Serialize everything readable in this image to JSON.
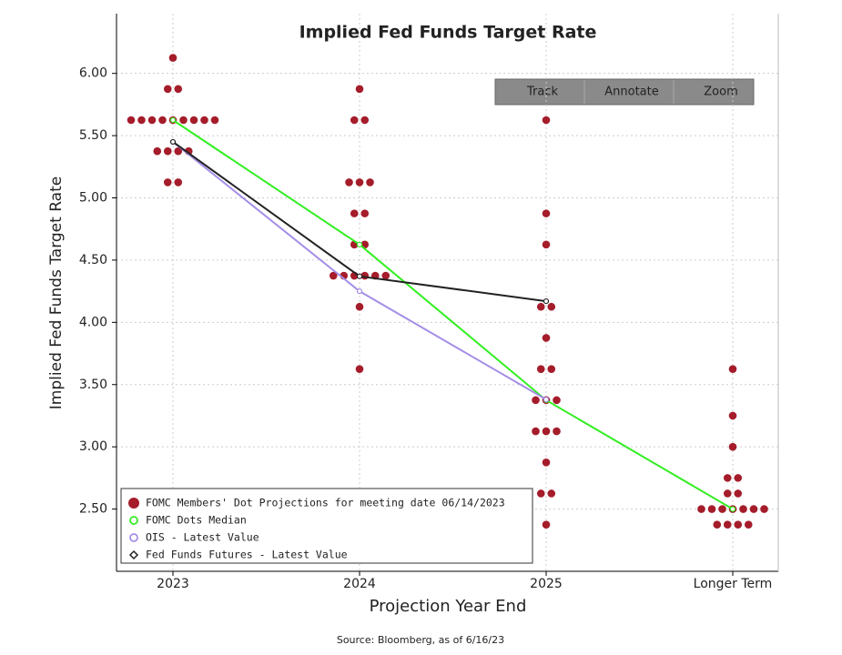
{
  "chart_data": {
    "type": "dotplot",
    "title": "Implied Fed Funds Target Rate",
    "x_label": "Projection Year End",
    "y_label": "Implied Fed Funds Target Rate",
    "categories": [
      "2023",
      "2024",
      "2025",
      "Longer Term"
    ],
    "ylim": [
      2.0,
      6.48
    ],
    "yticks": [
      {
        "value": 2.5,
        "label": "2.50"
      },
      {
        "value": 3.0,
        "label": "3.00"
      },
      {
        "value": 3.5,
        "label": "3.50"
      },
      {
        "value": 4.0,
        "label": "4.00"
      },
      {
        "value": 4.5,
        "label": "4.50"
      },
      {
        "value": 5.0,
        "label": "5.00"
      },
      {
        "value": 5.5,
        "label": "5.50"
      },
      {
        "value": 6.0,
        "label": "6.00"
      }
    ],
    "grid": true,
    "legend": "lower left",
    "series": [
      {
        "name": "FOMC Members' Dot Projections for meeting date 06/14/2023",
        "color": "#a51c2a",
        "values": [
          [
            6.125,
            5.875,
            5.875,
            5.625,
            5.625,
            5.625,
            5.625,
            5.625,
            5.625,
            5.625,
            5.625,
            5.625,
            5.375,
            5.375,
            5.375,
            5.375,
            5.125,
            5.125
          ],
          [
            5.875,
            5.625,
            5.625,
            5.125,
            5.125,
            5.125,
            4.875,
            4.875,
            4.625,
            4.625,
            4.375,
            4.375,
            4.375,
            4.375,
            4.375,
            4.375,
            4.125,
            3.625
          ],
          [
            5.625,
            4.875,
            4.625,
            4.125,
            4.125,
            3.875,
            3.625,
            3.625,
            3.375,
            3.375,
            3.375,
            3.125,
            3.125,
            3.125,
            2.875,
            2.625,
            2.625,
            2.375
          ],
          [
            3.625,
            3.25,
            3.0,
            2.75,
            2.75,
            2.625,
            2.625,
            2.5,
            2.5,
            2.5,
            2.5,
            2.5,
            2.5,
            2.5,
            2.375,
            2.375,
            2.375,
            2.375
          ]
        ]
      },
      {
        "name": "FOMC Dots Median",
        "color": "#33ee22",
        "values": [
          5.625,
          4.625,
          3.375,
          2.5
        ]
      },
      {
        "name": "OIS - Latest Value",
        "color": "#a58ee8",
        "values": [
          5.45,
          4.25,
          3.38,
          null
        ]
      },
      {
        "name": "Fed Funds Futures - Latest Value",
        "color": "#222222",
        "values": [
          5.45,
          4.37,
          4.17,
          null
        ]
      }
    ],
    "toolbar": [
      "Track",
      "Annotate",
      "Zoom"
    ],
    "source": "Source: Bloomberg, as of 6/16/23"
  }
}
